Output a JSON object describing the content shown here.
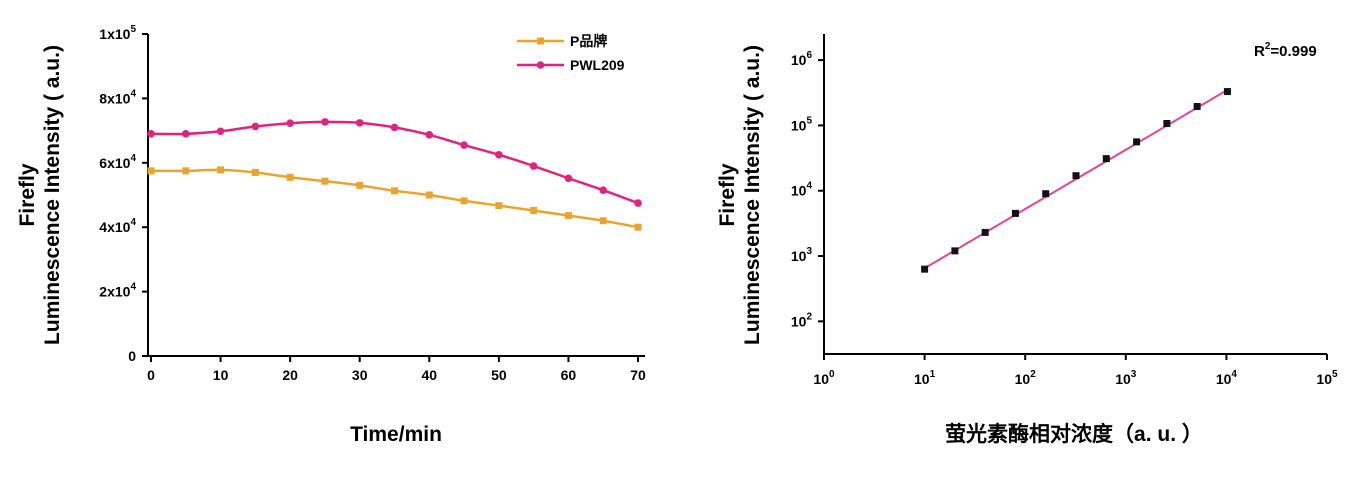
{
  "chart_data": [
    {
      "type": "line",
      "ylabel_lines": [
        "Firefly",
        "Luminescence Intensity ( a.u.)"
      ],
      "xlabel": "Time/min",
      "x": [
        0,
        5,
        10,
        15,
        20,
        25,
        30,
        35,
        40,
        45,
        50,
        55,
        60,
        65,
        70
      ],
      "xlim": [
        0,
        70
      ],
      "ylim": [
        0,
        100000
      ],
      "xticks": [
        0,
        10,
        20,
        30,
        40,
        50,
        60,
        70
      ],
      "yticks": [
        {
          "value": 0,
          "base": "0",
          "exp": ""
        },
        {
          "value": 20000,
          "base": "2x10",
          "exp": "4"
        },
        {
          "value": 40000,
          "base": "4x10",
          "exp": "4"
        },
        {
          "value": 60000,
          "base": "6x10",
          "exp": "4"
        },
        {
          "value": 80000,
          "base": "8x10",
          "exp": "4"
        },
        {
          "value": 100000,
          "base": "1x10",
          "exp": "5"
        }
      ],
      "legend_position": "top-right",
      "series": [
        {
          "name": "P品牌",
          "color": "#E8A52D",
          "marker": "square",
          "values": [
            57500,
            57500,
            57800,
            57000,
            55500,
            54300,
            53000,
            51300,
            50000,
            48200,
            46700,
            45200,
            43600,
            42000,
            40000
          ]
        },
        {
          "name": "PWL209",
          "color": "#E0237D",
          "marker": "circle",
          "values": [
            69000,
            69000,
            69800,
            71300,
            72300,
            72700,
            72400,
            71000,
            68700,
            65500,
            62500,
            59000,
            55200,
            51500,
            47500
          ]
        }
      ]
    },
    {
      "type": "scatter",
      "scale": "log-log",
      "ylabel_lines": [
        "Firefly",
        "Luminescence Intensity ( a.u.)"
      ],
      "xlabel": "萤光素酶相对浓度（a. u. ）",
      "annotation": {
        "prefix": "R",
        "sup": "2",
        "suffix": "=0.999"
      },
      "xlim_exp": [
        0,
        5
      ],
      "ylim_exp": [
        1.5,
        6.4
      ],
      "xticks_exp": [
        0,
        1,
        2,
        3,
        4,
        5
      ],
      "yticks_exp": [
        2,
        3,
        4,
        5,
        6
      ],
      "tick_base": "10",
      "points": {
        "x": [
          10,
          20,
          40,
          80,
          160,
          320,
          640,
          1280,
          2560,
          5120,
          10240
        ],
        "y": [
          630,
          1200,
          2300,
          4500,
          9000,
          17000,
          31000,
          56000,
          107000,
          195000,
          330000
        ]
      },
      "marker_color": "#111111",
      "fit_line": {
        "color": "#E0479A",
        "x": [
          10,
          10240
        ],
        "y": [
          650,
          350000
        ]
      }
    }
  ]
}
